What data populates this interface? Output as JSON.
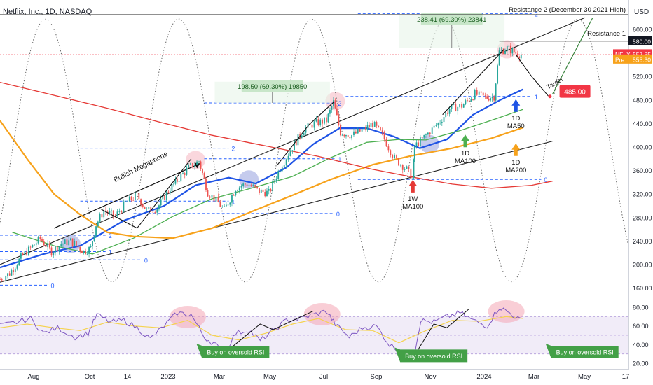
{
  "header": {
    "title": "Netflix, Inc., 1D, NASDAQ",
    "currency": "USD"
  },
  "colors": {
    "background": "#ffffff",
    "ma50": "#1e53e5",
    "ma100": "#4caf50",
    "ma200": "#f7a21b",
    "ma100_weekly": "#e53935",
    "candle_up": "#26a69a",
    "candle_down": "#ef5350",
    "rsi": "#7e57c2",
    "rsi_ma": "#f5d34f",
    "fib": "#2962ff",
    "label_green_bg": "#43a047",
    "target_box": "#f23645"
  },
  "chart_data": [
    {
      "type": "line",
      "title": "Netflix, Inc., 1D, NASDAQ",
      "y_axis": {
        "position": "right",
        "range": [
          150,
          650
        ],
        "ticks": [
          160,
          200,
          240,
          280,
          320,
          360,
          400,
          440,
          480,
          520,
          560,
          600
        ],
        "tick_labels": [
          "160.00",
          "200.00",
          "240.00",
          "280.00",
          "320.00",
          "360.00",
          "400.00",
          "440.00",
          "480.00",
          "520.00",
          "560.00",
          "600.00"
        ]
      },
      "x_axis": {
        "tick_labels": [
          "Aug",
          "Oct",
          "14",
          "2023",
          "Mar",
          "May",
          "Jul",
          "Sep",
          "Nov",
          "2024",
          "Mar",
          "May",
          "17"
        ],
        "range": [
          "2022-07-01",
          "2024-06-20"
        ]
      },
      "price_tags": [
        {
          "label": "",
          "value": "580.00",
          "y": 580.0
        },
        {
          "label": "NFLX",
          "value": "557.85",
          "y": 557.85
        },
        {
          "label": "Pre",
          "value": "555.30",
          "y": 549.0
        }
      ],
      "resistance_lines": [
        {
          "label": "Resistance 2 (December 30 2021 High)",
          "value": 625.0
        },
        {
          "label": "Resistance 1",
          "value": 580.0
        }
      ],
      "close_series": [
        [
          "2022-07-01",
          175
        ],
        [
          "2022-07-12",
          185
        ],
        [
          "2022-07-25",
          212
        ],
        [
          "2022-08-05",
          228
        ],
        [
          "2022-08-16",
          244
        ],
        [
          "2022-08-29",
          222
        ],
        [
          "2022-09-09",
          235
        ],
        [
          "2022-09-20",
          240
        ],
        [
          "2022-10-05",
          222
        ],
        [
          "2022-10-13",
          228
        ],
        [
          "2022-10-19",
          268
        ],
        [
          "2022-10-28",
          292
        ],
        [
          "2022-11-10",
          282
        ],
        [
          "2022-11-22",
          305
        ],
        [
          "2022-12-05",
          318
        ],
        [
          "2022-12-16",
          292
        ],
        [
          "2022-12-28",
          296
        ],
        [
          "2023-01-10",
          326
        ],
        [
          "2023-01-20",
          343
        ],
        [
          "2023-02-02",
          365
        ],
        [
          "2023-02-14",
          376
        ],
        [
          "2023-02-24",
          323
        ],
        [
          "2023-03-08",
          305
        ],
        [
          "2023-03-15",
          293
        ],
        [
          "2023-03-28",
          330
        ],
        [
          "2023-04-10",
          338
        ],
        [
          "2023-04-24",
          325
        ],
        [
          "2023-05-05",
          322
        ],
        [
          "2023-05-18",
          365
        ],
        [
          "2023-06-01",
          400
        ],
        [
          "2023-06-14",
          430
        ],
        [
          "2023-06-26",
          440
        ],
        [
          "2023-07-10",
          445
        ],
        [
          "2023-07-18",
          476
        ],
        [
          "2023-07-26",
          425
        ],
        [
          "2023-08-08",
          420
        ],
        [
          "2023-08-22",
          430
        ],
        [
          "2023-09-01",
          440
        ],
        [
          "2023-09-12",
          420
        ],
        [
          "2023-09-26",
          380
        ],
        [
          "2023-10-10",
          362
        ],
        [
          "2023-10-17",
          346
        ],
        [
          "2023-10-19",
          401
        ],
        [
          "2023-11-01",
          420
        ],
        [
          "2023-11-15",
          440
        ],
        [
          "2023-11-28",
          465
        ],
        [
          "2023-12-12",
          470
        ],
        [
          "2023-12-27",
          490
        ],
        [
          "2024-01-08",
          484
        ],
        [
          "2024-01-18",
          486
        ],
        [
          "2024-01-24",
          562
        ],
        [
          "2024-02-02",
          568
        ],
        [
          "2024-02-12",
          560
        ],
        [
          "2024-02-20",
          555
        ]
      ],
      "moving_averages": [
        {
          "name": "1D MA50",
          "color": "#1e53e5",
          "points": [
            [
              "2022-07-01",
              195
            ],
            [
              "2022-08-20",
              218
            ],
            [
              "2022-10-01",
              232
            ],
            [
              "2022-11-20",
              275
            ],
            [
              "2023-01-05",
              300
            ],
            [
              "2023-02-10",
              335
            ],
            [
              "2023-03-20",
              348
            ],
            [
              "2023-04-20",
              338
            ],
            [
              "2023-05-25",
              365
            ],
            [
              "2023-06-25",
              405
            ],
            [
              "2023-07-25",
              432
            ],
            [
              "2023-08-25",
              432
            ],
            [
              "2023-09-25",
              418
            ],
            [
              "2023-10-25",
              398
            ],
            [
              "2023-11-25",
              413
            ],
            [
              "2023-12-25",
              455
            ],
            [
              "2024-01-25",
              480
            ],
            [
              "2024-02-20",
              498
            ]
          ]
        },
        {
          "name": "1D MA100",
          "color": "#4caf50",
          "points": [
            [
              "2022-07-15",
              255
            ],
            [
              "2022-09-01",
              232
            ],
            [
              "2022-10-15",
              218
            ],
            [
              "2022-12-01",
              245
            ],
            [
              "2023-01-15",
              282
            ],
            [
              "2023-03-01",
              312
            ],
            [
              "2023-04-15",
              330
            ],
            [
              "2023-06-01",
              350
            ],
            [
              "2023-07-15",
              382
            ],
            [
              "2023-08-25",
              408
            ],
            [
              "2023-10-01",
              413
            ],
            [
              "2023-11-01",
              412
            ],
            [
              "2023-12-10",
              428
            ],
            [
              "2024-01-20",
              448
            ],
            [
              "2024-02-20",
              464
            ]
          ]
        },
        {
          "name": "1D MA200",
          "color": "#f7a21b",
          "points": [
            [
              "2022-07-01",
              445
            ],
            [
              "2022-08-01",
              380
            ],
            [
              "2022-09-01",
              320
            ],
            [
              "2022-10-01",
              285
            ],
            [
              "2022-11-01",
              255
            ],
            [
              "2022-12-01",
              248
            ],
            [
              "2023-01-15",
              245
            ],
            [
              "2023-03-01",
              262
            ],
            [
              "2023-04-15",
              290
            ],
            [
              "2023-06-01",
              318
            ],
            [
              "2023-07-15",
              345
            ],
            [
              "2023-09-01",
              370
            ],
            [
              "2023-10-15",
              385
            ],
            [
              "2023-12-01",
              398
            ],
            [
              "2024-01-15",
              415
            ],
            [
              "2024-02-20",
              433
            ]
          ]
        },
        {
          "name": "1W MA100",
          "color": "#e53935",
          "points": [
            [
              "2022-07-01",
              510
            ],
            [
              "2022-09-01",
              488
            ],
            [
              "2022-11-01",
              466
            ],
            [
              "2023-01-01",
              442
            ],
            [
              "2023-03-01",
              420
            ],
            [
              "2023-05-01",
              402
            ],
            [
              "2023-07-01",
              384
            ],
            [
              "2023-09-01",
              362
            ],
            [
              "2023-10-20",
              348
            ],
            [
              "2023-12-01",
              337
            ],
            [
              "2024-01-15",
              330
            ],
            [
              "2024-03-01",
              335
            ],
            [
              "2024-03-25",
              342
            ]
          ]
        }
      ],
      "megaphone_channel": {
        "label": "Bullish Megaphone",
        "upper": [
          [
            "2022-07-01",
            200
          ],
          [
            "2024-05-01",
            620
          ]
        ],
        "lower": [
          [
            "2022-07-01",
            170
          ],
          [
            "2024-03-25",
            410
          ]
        ]
      },
      "fib_levels": [
        {
          "label": "2",
          "value": 250,
          "x_from": "2022-07-01",
          "x_to": "2022-10-30"
        },
        {
          "label": "1",
          "value": 222,
          "x_from": "2022-07-01",
          "x_to": "2022-10-30"
        },
        {
          "label": "0",
          "value": 208,
          "x_from": "2022-07-01",
          "x_to": "2022-12-10"
        },
        {
          "label": "0",
          "value": 165,
          "x_from": "2022-07-01",
          "x_to": "2022-08-25"
        },
        {
          "label": "2",
          "value": 398,
          "x_from": "2022-10-01",
          "x_to": "2023-03-20"
        },
        {
          "label": "1",
          "value": 308,
          "x_from": "2022-10-01",
          "x_to": "2023-03-20"
        },
        {
          "label": "0",
          "value": 287,
          "x_from": "2022-12-01",
          "x_to": "2023-07-18"
        },
        {
          "label": "2",
          "value": 475,
          "x_from": "2023-02-20",
          "x_to": "2023-07-20"
        },
        {
          "label": "1",
          "value": 380,
          "x_from": "2023-02-20",
          "x_to": "2023-07-20"
        },
        {
          "label": "2",
          "value": 627,
          "x_from": "2023-08-15",
          "x_to": "2024-03-01"
        },
        {
          "label": "1",
          "value": 486,
          "x_from": "2023-08-01",
          "x_to": "2024-03-01"
        },
        {
          "label": "0",
          "value": 345,
          "x_from": "2023-08-15",
          "x_to": "2024-03-12"
        }
      ],
      "measure_boxes": [
        {
          "label": "198.50 (69.30%) 19850",
          "x_from": "2023-03-04",
          "x_to": "2023-07-14",
          "y_from": 475,
          "y_to": 511
        },
        {
          "label": "238.41 (69.30%) 23841",
          "x_from": "2023-10-01",
          "x_to": "2024-01-30",
          "y_from": 568,
          "y_to": 625
        }
      ],
      "annotations": [
        {
          "text": "1D MA50",
          "x": "2024-02-12",
          "y": 455,
          "arrow": "up",
          "arrow_color": "#1e53e5"
        },
        {
          "text": "1D MA100",
          "x": "2023-12-16",
          "y": 395,
          "arrow": "up",
          "arrow_color": "#4caf50"
        },
        {
          "text": "1D MA200",
          "x": "2024-02-12",
          "y": 380,
          "arrow": "up",
          "arrow_color": "#f7a21b"
        },
        {
          "text": "1W MA100",
          "x": "2023-10-17",
          "y": 318,
          "arrow": "up",
          "arrow_color": "#e53935"
        },
        {
          "text": "Target",
          "x": "2024-03-20",
          "y": 498
        }
      ],
      "target": {
        "label": "485.00",
        "value": 485.0
      },
      "legend": "none",
      "grid": false
    },
    {
      "type": "line",
      "title": "",
      "y_axis": {
        "position": "right",
        "range": [
          17,
          92
        ],
        "ticks": [
          20,
          40,
          60,
          80
        ],
        "tick_labels": [
          "20.00",
          "40.00",
          "60.00",
          "80.00"
        ]
      },
      "x_axis": {
        "range": [
          "2022-07-01",
          "2024-06-20"
        ]
      },
      "bands": {
        "overbought": 70,
        "oversold": 30,
        "middle": 50
      },
      "rsi_series": [
        [
          "2022-07-01",
          60
        ],
        [
          "2022-07-20",
          64
        ],
        [
          "2022-08-05",
          68
        ],
        [
          "2022-08-20",
          52
        ],
        [
          "2022-09-05",
          58
        ],
        [
          "2022-09-25",
          48
        ],
        [
          "2022-10-10",
          52
        ],
        [
          "2022-10-20",
          72
        ],
        [
          "2022-11-05",
          64
        ],
        [
          "2022-11-20",
          66
        ],
        [
          "2022-12-05",
          58
        ],
        [
          "2022-12-20",
          46
        ],
        [
          "2023-01-05",
          60
        ],
        [
          "2023-01-20",
          74
        ],
        [
          "2023-02-05",
          72
        ],
        [
          "2023-02-20",
          48
        ],
        [
          "2023-03-05",
          40
        ],
        [
          "2023-03-14",
          30
        ],
        [
          "2023-03-28",
          52
        ],
        [
          "2023-04-12",
          56
        ],
        [
          "2023-04-25",
          44
        ],
        [
          "2023-05-10",
          55
        ],
        [
          "2023-05-25",
          66
        ],
        [
          "2023-06-10",
          68
        ],
        [
          "2023-06-25",
          72
        ],
        [
          "2023-07-10",
          76
        ],
        [
          "2023-07-20",
          62
        ],
        [
          "2023-08-05",
          48
        ],
        [
          "2023-08-20",
          58
        ],
        [
          "2023-09-05",
          60
        ],
        [
          "2023-09-20",
          40
        ],
        [
          "2023-10-05",
          32
        ],
        [
          "2023-10-18",
          27
        ],
        [
          "2023-10-26",
          66
        ],
        [
          "2023-11-10",
          64
        ],
        [
          "2023-11-25",
          70
        ],
        [
          "2023-12-10",
          74
        ],
        [
          "2023-12-25",
          66
        ],
        [
          "2024-01-10",
          60
        ],
        [
          "2024-01-24",
          80
        ],
        [
          "2024-02-05",
          74
        ],
        [
          "2024-02-20",
          64
        ]
      ],
      "rsi_ma_series": [
        [
          "2022-07-01",
          58
        ],
        [
          "2022-08-01",
          62
        ],
        [
          "2022-09-01",
          58
        ],
        [
          "2022-10-01",
          55
        ],
        [
          "2022-11-01",
          64
        ],
        [
          "2022-12-01",
          60
        ],
        [
          "2023-01-01",
          58
        ],
        [
          "2023-02-01",
          66
        ],
        [
          "2023-03-01",
          50
        ],
        [
          "2023-04-01",
          45
        ],
        [
          "2023-05-01",
          52
        ],
        [
          "2023-06-01",
          62
        ],
        [
          "2023-07-01",
          68
        ],
        [
          "2023-08-01",
          56
        ],
        [
          "2023-09-01",
          55
        ],
        [
          "2023-10-01",
          42
        ],
        [
          "2023-11-01",
          55
        ],
        [
          "2023-12-01",
          66
        ],
        [
          "2024-01-01",
          65
        ],
        [
          "2024-02-01",
          70
        ],
        [
          "2024-02-20",
          68
        ]
      ],
      "annotations": [
        {
          "text": "Buy on oversold RSI",
          "x": "2023-03-28",
          "y": 32
        },
        {
          "text": "Buy on oversold RSI",
          "x": "2023-11-10",
          "y": 28
        },
        {
          "text": "Buy on oversold RSI",
          "x": "2024-05-01",
          "y": 32
        }
      ]
    }
  ]
}
